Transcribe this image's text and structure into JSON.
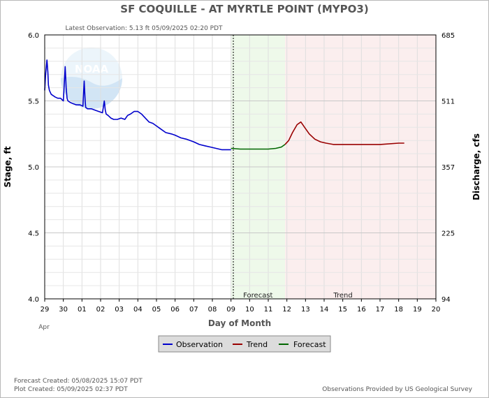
{
  "chart_data": {
    "type": "line",
    "title": "SF COQUILLE - AT MYRTLE POINT  (MYPO3)",
    "subtitle": "Latest Observation: 5.13 ft 05/09/2025 02:20 PDT",
    "xlabel": "Day of Month",
    "ylabel_left": "Stage, ft",
    "ylabel_right": "Discharge, cfs",
    "x_ticks": [
      "29",
      "30",
      "01",
      "02",
      "03",
      "04",
      "05",
      "06",
      "07",
      "08",
      "09",
      "10",
      "11",
      "12",
      "13",
      "14",
      "15",
      "16",
      "17",
      "18",
      "19",
      "20"
    ],
    "month_label": "Apr",
    "ylim": [
      4.0,
      6.0
    ],
    "y_ticks": [
      "4.0",
      "4.5",
      "5.0",
      "5.5",
      "6.0"
    ],
    "y_ticks_right": [
      "94",
      "225",
      "357",
      "511",
      "685"
    ],
    "grid": true,
    "regions": [
      {
        "label": "Forecast",
        "start": 10.0,
        "end": 12.9,
        "color": "#eef9ea"
      },
      {
        "label": "Trend",
        "start": 12.9,
        "end": 21.0,
        "color": "#fbeeee"
      }
    ],
    "series": [
      {
        "name": "Observation",
        "color": "#0000cc",
        "x": [
          0.0,
          0.05,
          0.12,
          0.17,
          0.2,
          0.25,
          0.35,
          0.45,
          0.55,
          0.7,
          0.85,
          1.0,
          1.1,
          1.15,
          1.2,
          1.25,
          1.35,
          1.5,
          1.7,
          1.9,
          2.05,
          2.12,
          2.17,
          2.2,
          2.3,
          2.5,
          2.7,
          2.9,
          3.1,
          3.2,
          3.25,
          3.3,
          3.4,
          3.55,
          3.7,
          3.9,
          4.1,
          4.3,
          4.45,
          4.6,
          4.8,
          5.0,
          5.2,
          5.4,
          5.6,
          5.8,
          6.0,
          6.2,
          6.5,
          6.8,
          7.0,
          7.3,
          7.6,
          8.0,
          8.3,
          8.6,
          8.9,
          9.2,
          9.5,
          9.8,
          10.0
        ],
        "values": [
          5.58,
          5.7,
          5.81,
          5.72,
          5.62,
          5.58,
          5.55,
          5.54,
          5.53,
          5.52,
          5.52,
          5.5,
          5.76,
          5.6,
          5.52,
          5.5,
          5.49,
          5.48,
          5.47,
          5.47,
          5.46,
          5.65,
          5.5,
          5.45,
          5.44,
          5.44,
          5.43,
          5.42,
          5.41,
          5.5,
          5.43,
          5.4,
          5.39,
          5.37,
          5.36,
          5.36,
          5.37,
          5.36,
          5.39,
          5.4,
          5.42,
          5.42,
          5.4,
          5.37,
          5.34,
          5.33,
          5.31,
          5.29,
          5.26,
          5.25,
          5.24,
          5.22,
          5.21,
          5.19,
          5.17,
          5.16,
          5.15,
          5.14,
          5.13,
          5.13,
          5.13
        ]
      },
      {
        "name": "Forecast",
        "color": "#006600",
        "x": [
          10.0,
          10.5,
          11.0,
          11.5,
          12.0,
          12.4,
          12.7,
          12.9
        ],
        "values": [
          5.14,
          5.135,
          5.135,
          5.135,
          5.135,
          5.14,
          5.15,
          5.17
        ]
      },
      {
        "name": "Trend",
        "color": "#990000",
        "x": [
          12.9,
          13.1,
          13.3,
          13.55,
          13.75,
          13.95,
          14.2,
          14.5,
          14.8,
          15.1,
          15.5,
          16.0,
          17.0,
          18.0,
          19.0,
          19.3
        ],
        "values": [
          5.17,
          5.2,
          5.26,
          5.32,
          5.34,
          5.3,
          5.25,
          5.21,
          5.19,
          5.18,
          5.17,
          5.17,
          5.17,
          5.17,
          5.18,
          5.18
        ]
      }
    ]
  },
  "legend": {
    "observation_label": "Observation",
    "trend_label": "Trend",
    "forecast_label": "Forecast"
  },
  "logo_text": "NOAA",
  "footer": {
    "forecast_created": "Forecast Created: 05/08/2025 15:07 PDT",
    "plot_created": "Plot Created: 05/09/2025 02:37 PDT",
    "provider": "Observations Provided by US Geological Survey"
  }
}
